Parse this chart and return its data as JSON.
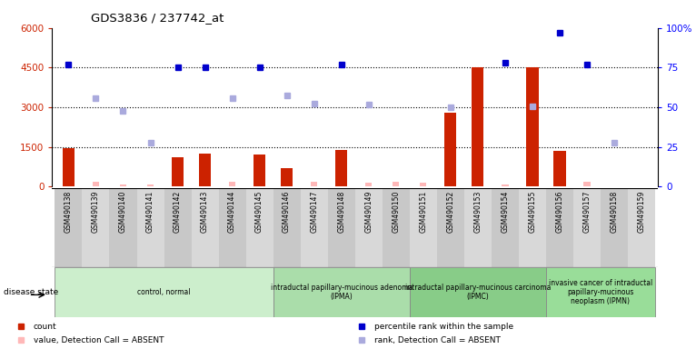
{
  "title": "GDS3836 / 237742_at",
  "samples": [
    "GSM490138",
    "GSM490139",
    "GSM490140",
    "GSM490141",
    "GSM490142",
    "GSM490143",
    "GSM490144",
    "GSM490145",
    "GSM490146",
    "GSM490147",
    "GSM490148",
    "GSM490149",
    "GSM490150",
    "GSM490151",
    "GSM490152",
    "GSM490153",
    "GSM490154",
    "GSM490155",
    "GSM490156",
    "GSM490157",
    "GSM490158",
    "GSM490159"
  ],
  "count_vals": [
    1450,
    0,
    0,
    0,
    1100,
    1250,
    0,
    1200,
    700,
    0,
    1400,
    0,
    0,
    0,
    2800,
    4500,
    0,
    4500,
    1350,
    0,
    0,
    0
  ],
  "count_absent_vals": [
    0,
    200,
    100,
    100,
    0,
    0,
    200,
    0,
    0,
    200,
    0,
    150,
    200,
    150,
    0,
    0,
    100,
    0,
    0,
    200,
    0,
    0
  ],
  "perc_rank": [
    77,
    null,
    null,
    null,
    75,
    75,
    null,
    75,
    null,
    null,
    77,
    null,
    null,
    null,
    null,
    null,
    78,
    null,
    97,
    77,
    null,
    null
  ],
  "rank_absent": [
    null,
    3350,
    2850,
    1650,
    null,
    null,
    3350,
    null,
    3450,
    3150,
    null,
    3100,
    null,
    null,
    3000,
    null,
    null,
    3050,
    null,
    null,
    1650,
    null
  ],
  "ylim_left": [
    0,
    6000
  ],
  "ylim_right": [
    0,
    100
  ],
  "yticks_left": [
    0,
    1500,
    3000,
    4500,
    6000
  ],
  "ytick_labels_left": [
    "0",
    "1500",
    "3000",
    "4500",
    "6000"
  ],
  "yticks_right": [
    0,
    25,
    50,
    75,
    100
  ],
  "ytick_labels_right": [
    "0",
    "25",
    "50",
    "75",
    "100%"
  ],
  "bar_color": "#cc2200",
  "bar_absent_color": "#ffb8b8",
  "dot_color": "#0000cc",
  "rank_absent_color": "#aaaadd",
  "groups": [
    {
      "label": "control, normal",
      "start": 0,
      "end": 8,
      "color": "#cceecc"
    },
    {
      "label": "intraductal papillary-mucinous adenoma\n(IPMA)",
      "start": 8,
      "end": 13,
      "color": "#aaddaa"
    },
    {
      "label": "intraductal papillary-mucinous carcinoma\n(IPMC)",
      "start": 13,
      "end": 18,
      "color": "#88cc88"
    },
    {
      "label": "invasive cancer of intraductal\npapillary-mucinous\nneoplasm (IPMN)",
      "start": 18,
      "end": 22,
      "color": "#99dd99"
    }
  ],
  "legend_items": [
    {
      "color": "#cc2200",
      "label": "count"
    },
    {
      "color": "#0000cc",
      "label": "percentile rank within the sample"
    },
    {
      "color": "#ffb8b8",
      "label": "value, Detection Call = ABSENT"
    },
    {
      "color": "#aaaadd",
      "label": "rank, Detection Call = ABSENT"
    }
  ]
}
